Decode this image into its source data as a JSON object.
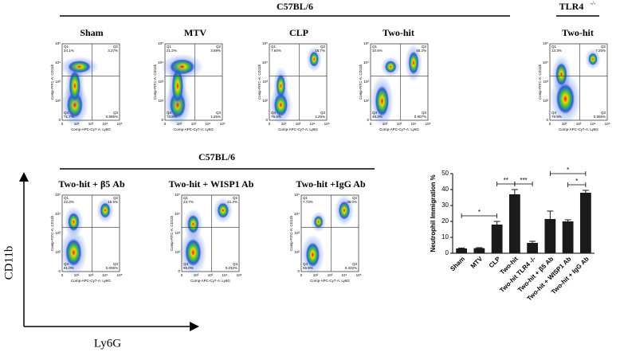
{
  "groups": {
    "top": "C57BL/6",
    "knockout": "TLR4",
    "knockout_sup": "-/-",
    "bottom": "C57BL/6"
  },
  "flow_axes": {
    "x_label": "Comp-APC-Cy7-A: Ly6G",
    "y_label": "Comp-FITC-A: CD11b",
    "ticks": [
      "0",
      "10²",
      "10³",
      "10⁴",
      "10⁵"
    ],
    "quadrants": [
      "Q1",
      "Q2",
      "Q3",
      "Q4"
    ]
  },
  "panels": [
    {
      "title": "Sham",
      "q": [
        "24.1%",
        "3.27%",
        "0.995%",
        "71.7%"
      ]
    },
    {
      "title": "MTV",
      "q": [
        "21.2%",
        "3.59%",
        "1.45%",
        "73.8%"
      ]
    },
    {
      "title": "CLP",
      "q": [
        "7.64%",
        "15.7%",
        "1.25%",
        "75.4%"
      ]
    },
    {
      "title": "Two-hit",
      "q": [
        "10.6%",
        "40.2%",
        "0.907%",
        "48.3%"
      ]
    },
    {
      "title": "Two-hit",
      "q": [
        "13.3%",
        "7.25%",
        "0.565%",
        "78.9%"
      ]
    },
    {
      "title": "Two-hit + β5 Ab",
      "q": [
        "22.3%",
        "16.6%",
        "0.006%",
        "61.0%"
      ]
    },
    {
      "title": "Two-hit + WISP1 Ab",
      "q": [
        "23.7%",
        "21.2%",
        "0.032%",
        "55.0%"
      ]
    },
    {
      "title": "Two-hit +IgG Ab",
      "q": [
        "7.73%",
        "36.0%",
        "0.332%",
        "55.9%"
      ]
    }
  ],
  "big_axes": {
    "y": "CD11b",
    "x": "Ly6G"
  },
  "chart_data": {
    "type": "bar",
    "y_label": "Neutrophil Immigration %",
    "categories": [
      "Sham",
      "MTV",
      "CLP",
      "Two-hit",
      "Two-hit TLR4 -/-",
      "Two-hit + β5 Ab",
      "Two-hit + WISP1 Ab",
      "Two-hit + IgG Ab"
    ],
    "values": [
      3,
      3.2,
      18,
      37,
      6.5,
      21.5,
      20,
      38
    ],
    "errors": [
      0.3,
      0.3,
      2,
      3,
      1,
      5,
      1,
      1.5
    ],
    "color": "#1a1a1a",
    "ylim": [
      0,
      50
    ],
    "yticks": [
      0,
      10,
      20,
      30,
      40,
      50
    ],
    "annotations": [
      {
        "text": "*",
        "from": "Sham",
        "to": "CLP"
      },
      {
        "text": "**",
        "from": "CLP",
        "to": "Two-hit"
      },
      {
        "text": "***",
        "from": "Two-hit",
        "to": "Two-hit TLR4 -/-"
      },
      {
        "text": "*",
        "from": "Two-hit + β5 Ab",
        "to": "Two-hit + IgG Ab"
      },
      {
        "text": "*",
        "from": "Two-hit + WISP1 Ab",
        "to": "Two-hit + IgG Ab"
      }
    ]
  }
}
